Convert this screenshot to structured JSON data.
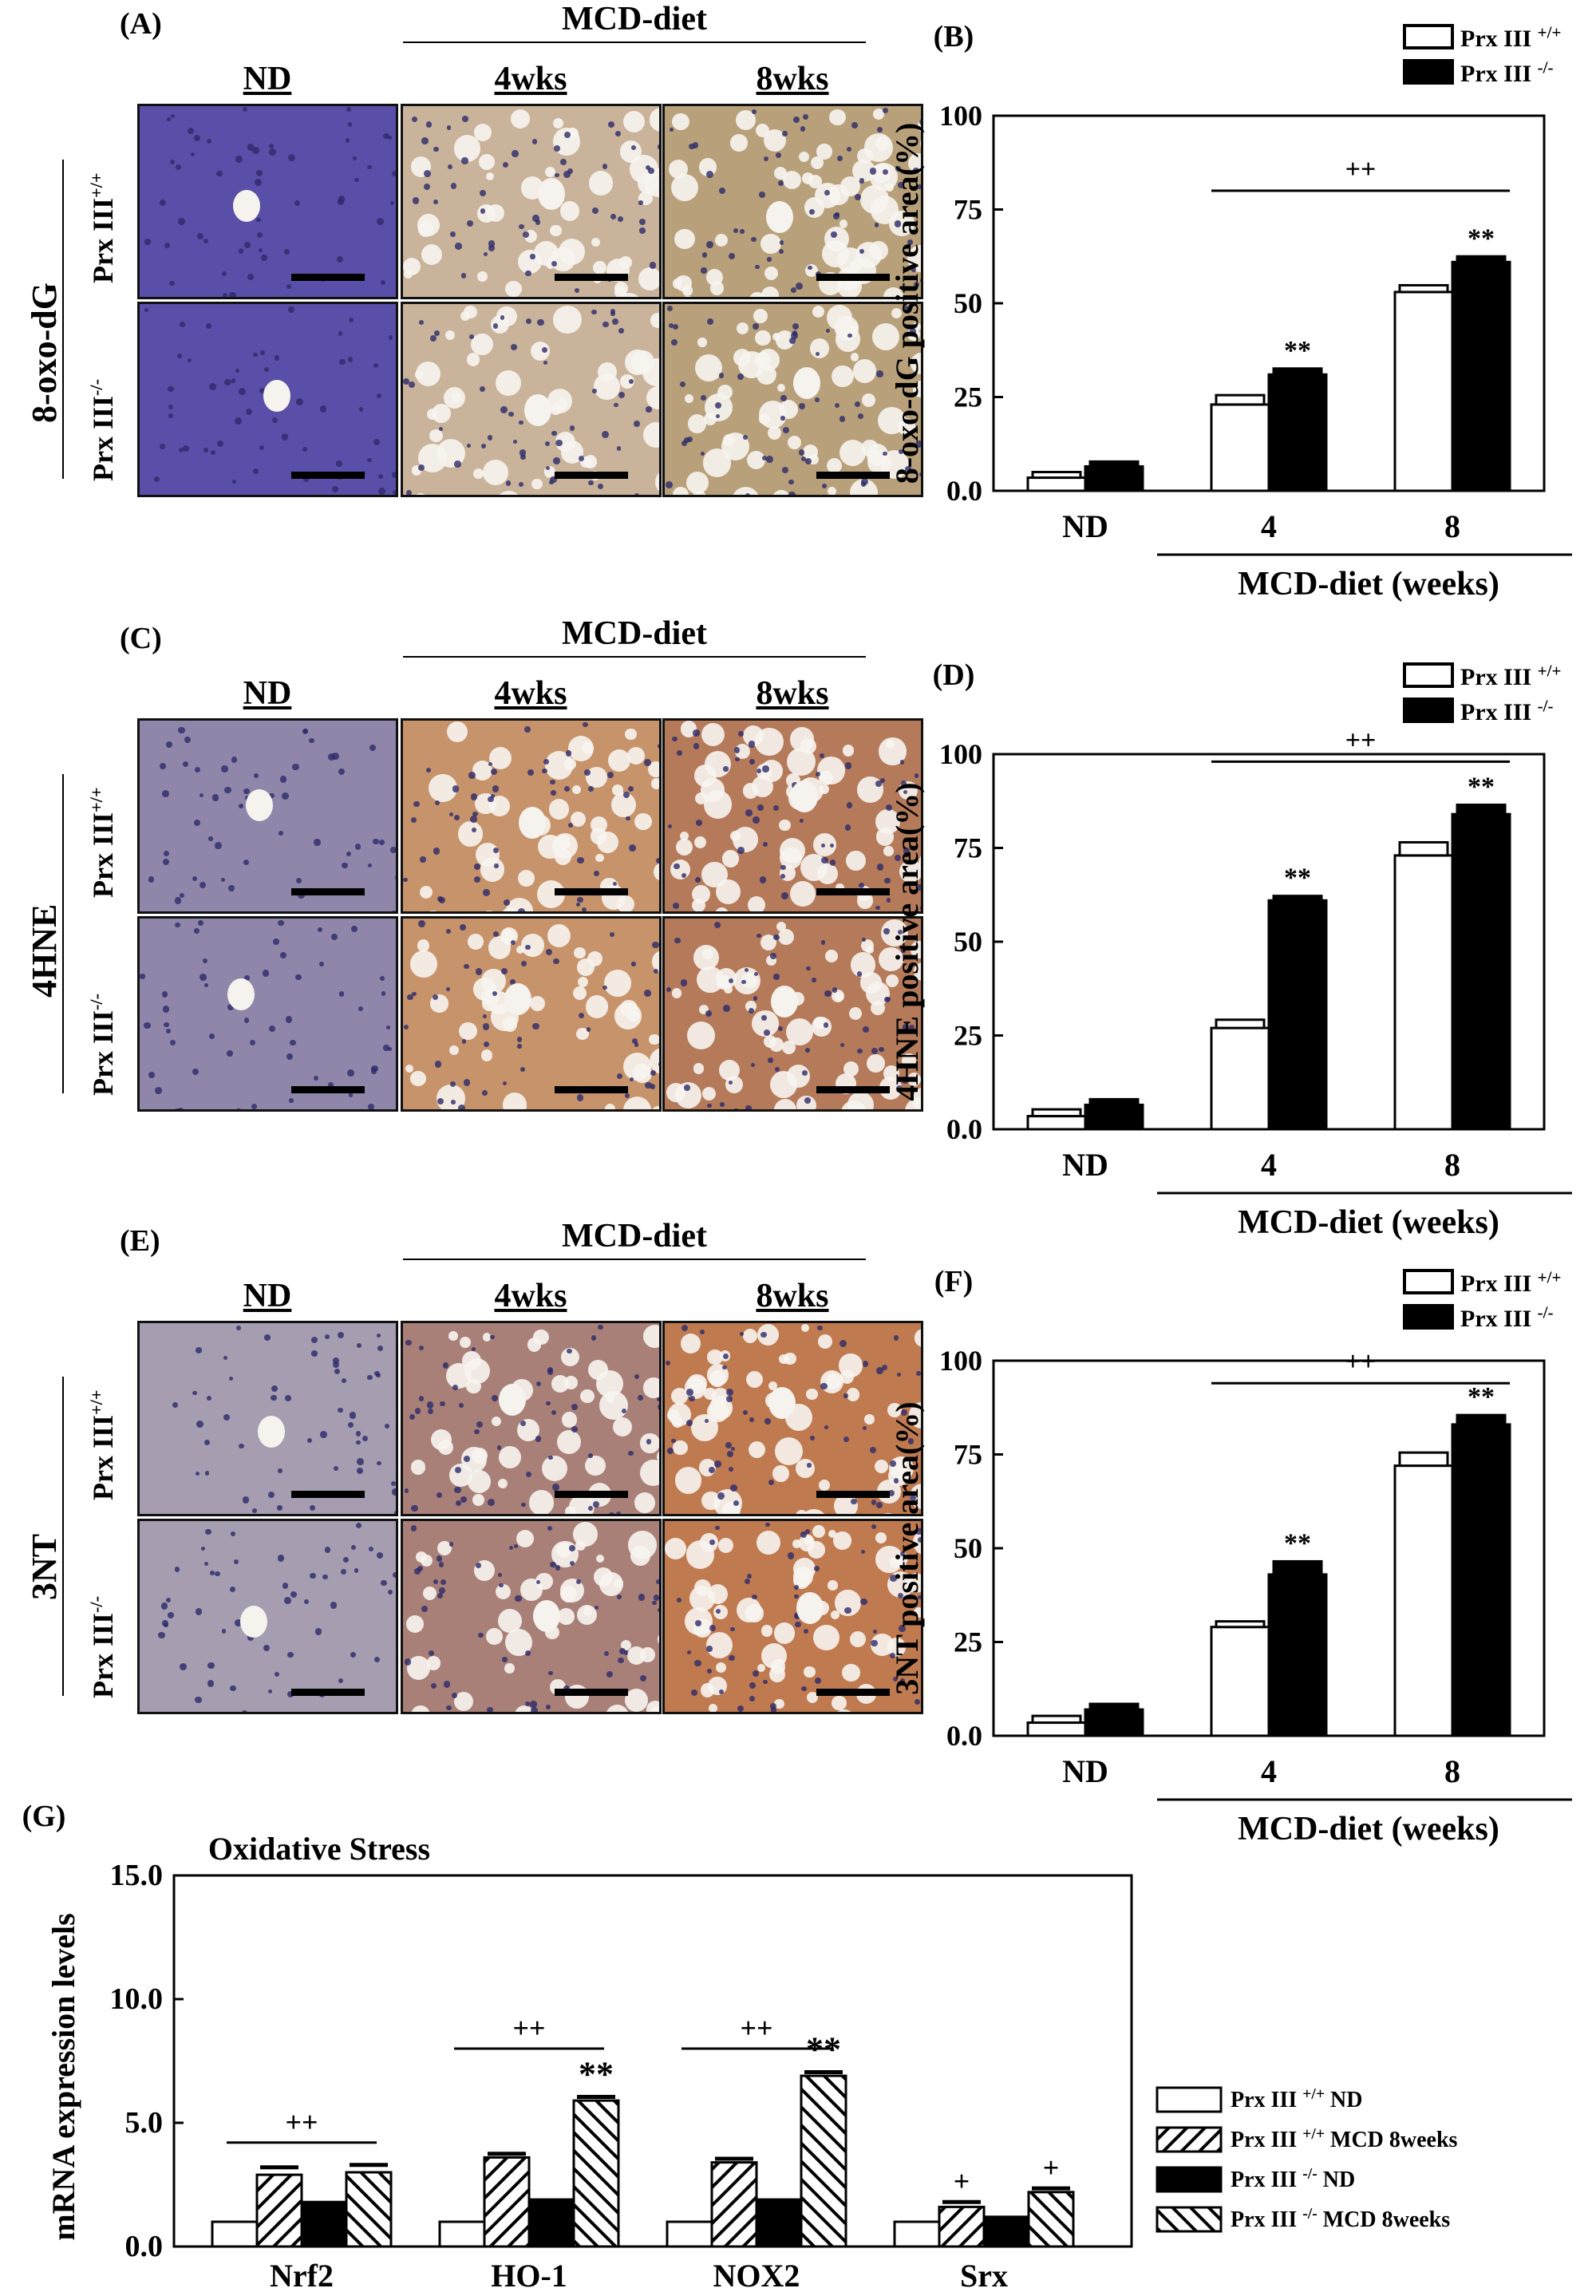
{
  "histology": [
    {
      "label": "(A)",
      "stain": "8-oxo-dG",
      "diet_header": "MCD-diet",
      "columns": [
        "ND",
        "4wks",
        "8wks"
      ],
      "row_prefix": "Prx III",
      "row_sups": [
        "+/+",
        "-/-"
      ],
      "palette": {
        "nd": "#5a4fa8",
        "w4": "#c9b39a",
        "w8": "#b8a07a"
      }
    },
    {
      "label": "(C)",
      "stain": "4HNE",
      "diet_header": "MCD-diet",
      "columns": [
        "ND",
        "4wks",
        "8wks"
      ],
      "row_prefix": "Prx III",
      "row_sups": [
        "+/+",
        "-/-"
      ],
      "palette": {
        "nd": "#8f86aa",
        "w4": "#c7936b",
        "w8": "#b47a5a"
      }
    },
    {
      "label": "(E)",
      "stain": "3NT",
      "diet_header": "MCD-diet",
      "columns": [
        "ND",
        "4wks",
        "8wks"
      ],
      "row_prefix": "Prx III",
      "row_sups": [
        "+/+",
        "-/-"
      ],
      "palette": {
        "nd": "#a79db0",
        "w4": "#a98078",
        "w8": "#c07a50"
      }
    }
  ],
  "chart_data": [
    {
      "panel": "(B)",
      "type": "bar",
      "ylabel": "8-oxo-dG positive area(%)",
      "xlabel": "MCD-diet (weeks)",
      "categories": [
        "ND",
        "4",
        "8"
      ],
      "ylim": [
        0,
        100
      ],
      "yticks": [
        "0.0",
        "25",
        "50",
        "75",
        "100"
      ],
      "legend_prefix": "Prx III",
      "series": [
        {
          "sup": "+/+",
          "fill": "#ffffff",
          "values": [
            3.5,
            23,
            53
          ],
          "errors": [
            1.5,
            2.5,
            1.8
          ]
        },
        {
          "sup": "-/-",
          "fill": "#000000",
          "values": [
            6.5,
            31,
            61
          ],
          "errors": [
            1.3,
            1.6,
            1.5
          ]
        }
      ],
      "annotations": [
        {
          "text": "**",
          "category": 1,
          "series": 1
        },
        {
          "text": "**",
          "category": 2,
          "series": 1
        }
      ],
      "bracket": {
        "text": "++",
        "from": 1,
        "to": 2,
        "y": 80
      }
    },
    {
      "panel": "(D)",
      "type": "bar",
      "ylabel": "4HNE positive area(%)",
      "xlabel": "MCD-diet (weeks)",
      "categories": [
        "ND",
        "4",
        "8"
      ],
      "ylim": [
        0,
        100
      ],
      "yticks": [
        "0.0",
        "25",
        "50",
        "75",
        "100"
      ],
      "legend_prefix": "Prx III",
      "series": [
        {
          "sup": "+/+",
          "fill": "#ffffff",
          "values": [
            3.5,
            27,
            73
          ],
          "errors": [
            1.8,
            2.2,
            3.5
          ]
        },
        {
          "sup": "-/-",
          "fill": "#000000",
          "values": [
            6.5,
            61,
            84
          ],
          "errors": [
            1.5,
            1.2,
            2.5
          ]
        }
      ],
      "annotations": [
        {
          "text": "**",
          "category": 1,
          "series": 1
        },
        {
          "text": "**",
          "category": 2,
          "series": 1
        }
      ],
      "bracket": {
        "text": "++",
        "from": 1,
        "to": 2,
        "y": 98
      }
    },
    {
      "panel": "(F)",
      "type": "bar",
      "ylabel": "3NT positive area(%)",
      "xlabel": "MCD-diet (weeks)",
      "categories": [
        "ND",
        "4",
        "8"
      ],
      "ylim": [
        0,
        100
      ],
      "yticks": [
        "0.0",
        "25",
        "50",
        "75",
        "100"
      ],
      "legend_prefix": "Prx III",
      "series": [
        {
          "sup": "+/+",
          "fill": "#ffffff",
          "values": [
            3.5,
            29,
            72
          ],
          "errors": [
            1.8,
            1.5,
            3.5
          ]
        },
        {
          "sup": "-/-",
          "fill": "#000000",
          "values": [
            7,
            43,
            83
          ],
          "errors": [
            1.5,
            3.5,
            2.5
          ]
        }
      ],
      "annotations": [
        {
          "text": "**",
          "category": 1,
          "series": 1
        },
        {
          "text": "**",
          "category": 2,
          "series": 1
        }
      ],
      "bracket": {
        "text": "++",
        "from": 1,
        "to": 2,
        "y": 94
      }
    },
    {
      "panel": "(G)",
      "type": "bar",
      "title": "Oxidative Stress",
      "ylabel": "mRNA expression levels",
      "categories": [
        "Nrf2",
        "HO-1",
        "NOX2",
        "Srx"
      ],
      "ylim": [
        0,
        15
      ],
      "yticks": [
        "0.0",
        "5.0",
        "10.0",
        "15.0"
      ],
      "legend_prefix": "Prx III",
      "series": [
        {
          "sup": "+/+",
          "suffix": "ND",
          "pattern": "white",
          "values": [
            1.0,
            1.0,
            1.0,
            1.0
          ],
          "errors": [
            0,
            0,
            0,
            0
          ]
        },
        {
          "sup": "+/+",
          "suffix": "MCD 8weeks",
          "pattern": "hatch-up",
          "values": [
            2.9,
            3.6,
            3.4,
            1.6
          ],
          "errors": [
            0.3,
            0.15,
            0.15,
            0.2
          ]
        },
        {
          "sup": "-/-",
          "suffix": "ND",
          "pattern": "black",
          "values": [
            1.8,
            1.9,
            1.9,
            1.2
          ],
          "errors": [
            0,
            0,
            0,
            0
          ]
        },
        {
          "sup": "-/-",
          "suffix": "MCD 8weeks",
          "pattern": "hatch-down",
          "values": [
            3.0,
            5.9,
            6.9,
            2.2
          ],
          "errors": [
            0.3,
            0.15,
            0.15,
            0.15
          ]
        }
      ],
      "annotations": [
        {
          "text": "**",
          "category": 1,
          "series": 3
        },
        {
          "text": "**",
          "category": 2,
          "series": 3
        },
        {
          "text": "+",
          "category": 3,
          "series": 1
        },
        {
          "text": "+",
          "category": 3,
          "series": 3
        }
      ],
      "brackets": [
        {
          "text": "++",
          "category": 0,
          "y": 4.2
        },
        {
          "text": "++",
          "category": 1,
          "y": 8.0
        },
        {
          "text": "++",
          "category": 2,
          "y": 8.0
        }
      ]
    }
  ]
}
